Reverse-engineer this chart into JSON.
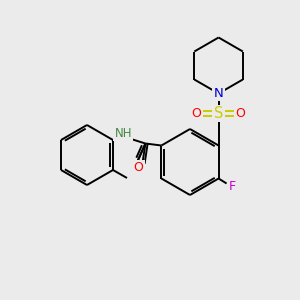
{
  "background_color": "#ebebeb",
  "atom_colors": {
    "C": "#000000",
    "N": "#0000cc",
    "O": "#ff0000",
    "S": "#cccc00",
    "F": "#cc00cc",
    "H": "#448844"
  },
  "bond_lw": 1.4,
  "font_size": 9
}
